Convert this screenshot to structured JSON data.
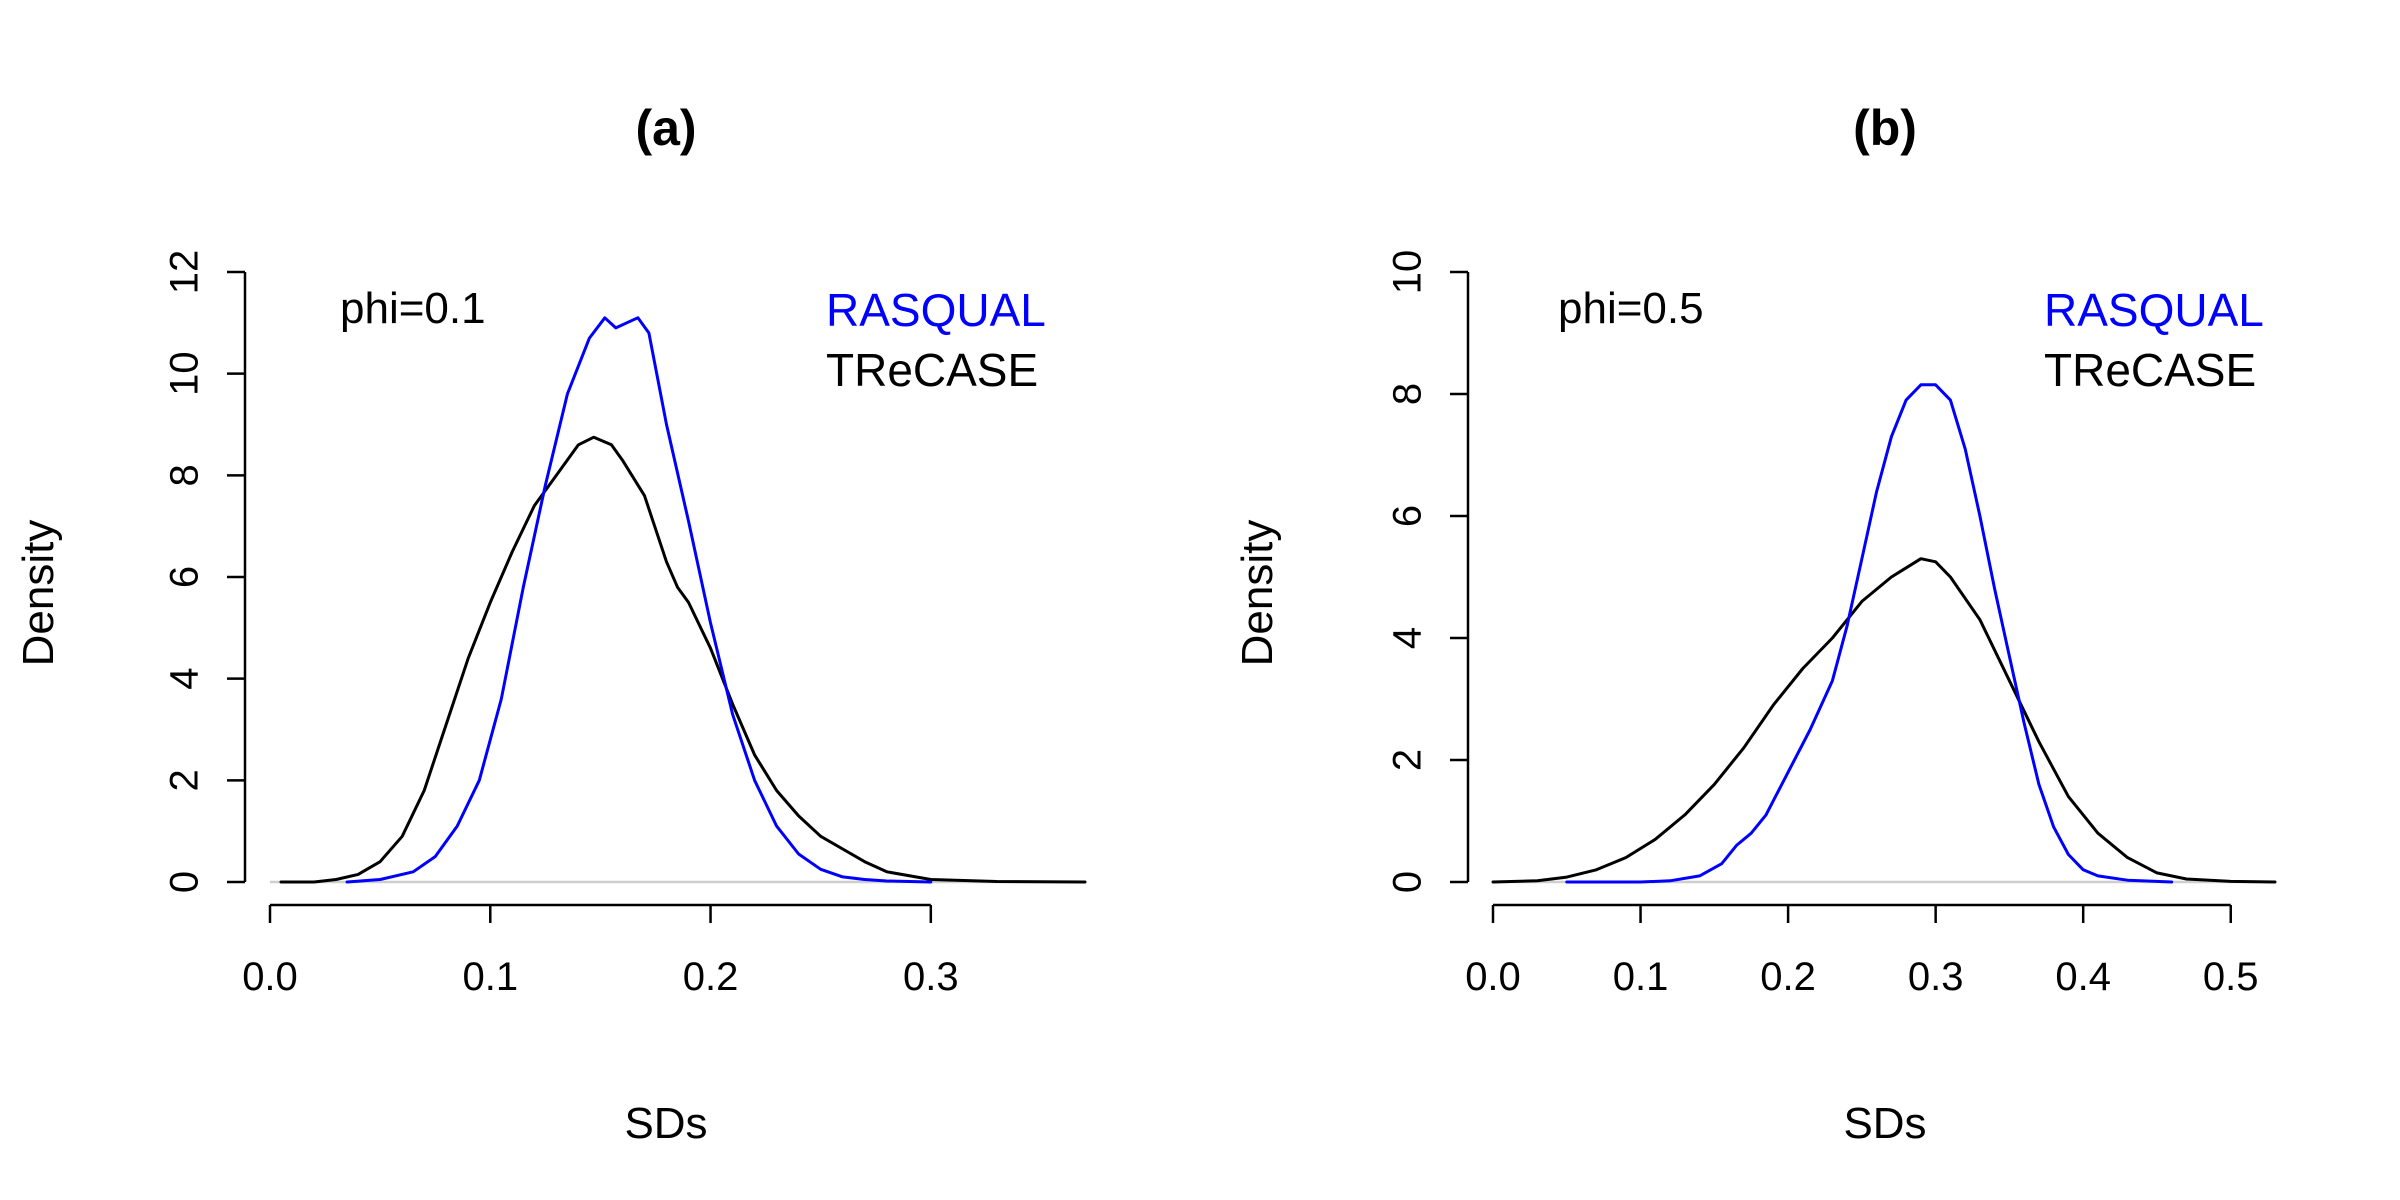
{
  "colors": {
    "rasqual": "#0000FF",
    "trecase": "#000000",
    "baseline": "#CFCFCF"
  },
  "chart_data": [
    {
      "type": "line",
      "title": "(a)",
      "xlabel": "SDs",
      "ylabel": "Density",
      "annotation": "phi=0.1",
      "legend_position": "top-right",
      "xlim": [
        0.0,
        0.37
      ],
      "ylim": [
        0,
        12
      ],
      "xticks": [
        0.0,
        0.1,
        0.2,
        0.3
      ],
      "xtick_labels": [
        "0.0",
        "0.1",
        "0.2",
        "0.3"
      ],
      "yticks": [
        0,
        2,
        4,
        6,
        8,
        10,
        12
      ],
      "ytick_labels": [
        "0",
        "2",
        "4",
        "6",
        "8",
        "10",
        "12"
      ],
      "series": [
        {
          "name": "RASQUAL",
          "color": "#0000FF",
          "x": [
            0.035,
            0.05,
            0.065,
            0.075,
            0.085,
            0.095,
            0.105,
            0.115,
            0.125,
            0.135,
            0.145,
            0.152,
            0.157,
            0.162,
            0.167,
            0.172,
            0.18,
            0.19,
            0.2,
            0.21,
            0.22,
            0.23,
            0.24,
            0.25,
            0.26,
            0.27,
            0.28,
            0.3
          ],
          "values": [
            0,
            0.05,
            0.2,
            0.5,
            1.1,
            2.0,
            3.6,
            5.8,
            7.8,
            9.6,
            10.7,
            11.1,
            10.9,
            11.0,
            11.1,
            10.8,
            9.0,
            7.1,
            5.1,
            3.3,
            2.0,
            1.1,
            0.55,
            0.25,
            0.1,
            0.05,
            0.02,
            0
          ]
        },
        {
          "name": "TReCASE",
          "color": "#000000",
          "x": [
            0.005,
            0.02,
            0.03,
            0.04,
            0.05,
            0.06,
            0.07,
            0.08,
            0.09,
            0.1,
            0.11,
            0.12,
            0.13,
            0.14,
            0.147,
            0.155,
            0.16,
            0.17,
            0.18,
            0.185,
            0.19,
            0.2,
            0.21,
            0.22,
            0.23,
            0.24,
            0.25,
            0.26,
            0.27,
            0.28,
            0.3,
            0.33,
            0.37
          ],
          "values": [
            0,
            0,
            0.05,
            0.15,
            0.4,
            0.9,
            1.8,
            3.1,
            4.4,
            5.5,
            6.5,
            7.4,
            8.0,
            8.6,
            8.75,
            8.6,
            8.3,
            7.6,
            6.3,
            5.8,
            5.5,
            4.6,
            3.5,
            2.5,
            1.8,
            1.3,
            0.9,
            0.65,
            0.4,
            0.2,
            0.05,
            0.01,
            0
          ]
        }
      ]
    },
    {
      "type": "line",
      "title": "(b)",
      "xlabel": "SDs",
      "ylabel": "Density",
      "annotation": "phi=0.5",
      "legend_position": "top-right",
      "xlim": [
        0.0,
        0.53
      ],
      "ylim": [
        0,
        10
      ],
      "xticks": [
        0.0,
        0.1,
        0.2,
        0.3,
        0.4,
        0.5
      ],
      "xtick_labels": [
        "0.0",
        "0.1",
        "0.2",
        "0.3",
        "0.4",
        "0.5"
      ],
      "yticks": [
        0,
        2,
        4,
        6,
        8,
        10
      ],
      "ytick_labels": [
        "0",
        "2",
        "4",
        "6",
        "8",
        "10"
      ],
      "series": [
        {
          "name": "RASQUAL",
          "color": "#0000FF",
          "x": [
            0.05,
            0.1,
            0.12,
            0.14,
            0.155,
            0.165,
            0.175,
            0.185,
            0.2,
            0.215,
            0.23,
            0.24,
            0.25,
            0.26,
            0.27,
            0.28,
            0.29,
            0.3,
            0.31,
            0.32,
            0.33,
            0.34,
            0.35,
            0.36,
            0.37,
            0.38,
            0.39,
            0.4,
            0.41,
            0.43,
            0.46
          ],
          "values": [
            0,
            0,
            0.02,
            0.1,
            0.3,
            0.6,
            0.8,
            1.1,
            1.8,
            2.5,
            3.3,
            4.2,
            5.3,
            6.4,
            7.3,
            7.9,
            8.15,
            8.15,
            7.9,
            7.1,
            6.0,
            4.8,
            3.7,
            2.6,
            1.6,
            0.9,
            0.45,
            0.2,
            0.1,
            0.03,
            0
          ]
        },
        {
          "name": "TReCASE",
          "color": "#000000",
          "x": [
            0.0,
            0.03,
            0.05,
            0.07,
            0.09,
            0.11,
            0.13,
            0.15,
            0.17,
            0.19,
            0.21,
            0.23,
            0.25,
            0.27,
            0.29,
            0.3,
            0.31,
            0.33,
            0.35,
            0.37,
            0.39,
            0.41,
            0.43,
            0.45,
            0.47,
            0.5,
            0.53
          ],
          "values": [
            0,
            0.02,
            0.08,
            0.2,
            0.4,
            0.7,
            1.1,
            1.6,
            2.2,
            2.9,
            3.5,
            4.0,
            4.6,
            5.0,
            5.3,
            5.25,
            5.0,
            4.3,
            3.3,
            2.3,
            1.4,
            0.8,
            0.4,
            0.15,
            0.05,
            0.01,
            0
          ]
        }
      ]
    }
  ]
}
